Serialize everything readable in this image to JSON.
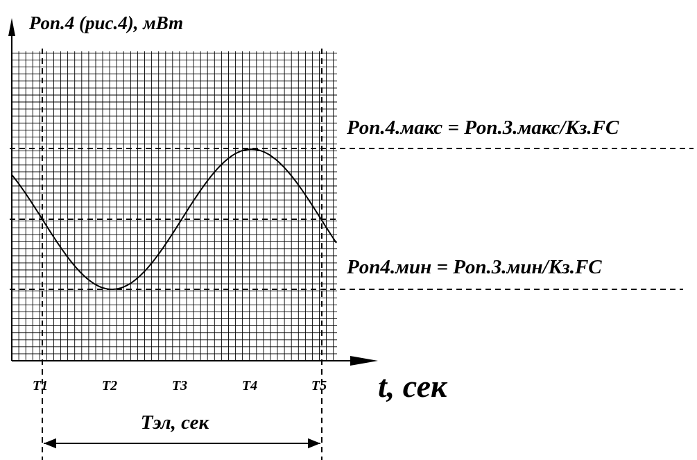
{
  "diagram": {
    "y_axis_label": "Pоп.4 (рис.4), мВт",
    "x_axis_label": "t, сек",
    "max_label": "Pоп.4.макс = Pоп.3.макс/Кз.FC",
    "min_label": "Pоп4.мин = Pоп.3.мин/Кз.FC",
    "period_label": "Тэл, сек",
    "ticks": [
      "T1",
      "T2",
      "T3",
      "T4",
      "T5"
    ]
  },
  "chart_data": {
    "type": "line",
    "title": "",
    "xlabel": "t, сек",
    "ylabel": "Pоп.4 (рис.4), мВт",
    "x_ticks": [
      "T1",
      "T2",
      "T3",
      "T4",
      "T5"
    ],
    "series": [
      {
        "shape": "sinusoid",
        "min_at": "T2",
        "max_at": "T4",
        "mean_crossings": [
          "T1",
          "T3",
          "T5"
        ]
      }
    ],
    "reference_lines": [
      "Pоп.4.макс = Pоп.3.макс/Кз.FC",
      "Pоп4.мин = Pоп.3.мин/Кз.FC"
    ],
    "period": "Тэл, сек",
    "grid": true
  }
}
